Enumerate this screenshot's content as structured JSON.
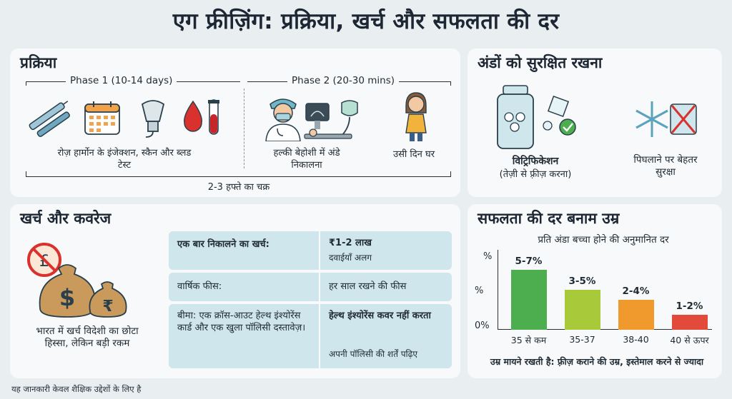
{
  "title": "एग फ्रीज़िंग: प्रक्रिया, खर्च और सफलता की दर",
  "process": {
    "heading": "प्रक्रिया",
    "phase1_label": "Phase 1 (10-14 days)",
    "phase2_label": "Phase 2 (20-30 mins)",
    "step1_caption": "रोज़ हार्मोन के इंजेक्शन, स्कैन और ब्लड टेस्ट",
    "step2_caption": "हल्की बेहोशी में अंडे निकालना",
    "step3_caption": "उसी दिन घर",
    "cycle_label": "2-3 हफ्ते का चक्र"
  },
  "storage": {
    "heading": "अंडों को सुरक्षित रखना",
    "vitri_title": "विट्रिफिकेशन",
    "vitri_sub": "(तेज़ी से फ़्रीज़ करना)",
    "thaw_caption": "पिघलाने पर बेहतर सुरक्षा"
  },
  "cost": {
    "heading": "खर्च और कवरेज",
    "caption": "भारत में खर्च विदेशी का छोटा हिस्सा, लेकिन बड़ी रकम",
    "rows": [
      {
        "label": "एक बार निकालने का खर्च:",
        "value": "₹1-2 लाख",
        "note": "दवाईयाँ अलग"
      },
      {
        "label": "वार्षिक फीस:",
        "value": "हर साल रखने की फीस",
        "note": ""
      },
      {
        "label": "बीमा: एक क्रॉस-आउट हेल्थ इंश्योरेंस कार्ड और एक खुला पॉलिसी दस्तावेज़।",
        "value": "हेल्थ इंश्योरेंस कवर नहीं करता",
        "note": "अपनी पॉलिसी की शर्तें पढ़िए"
      }
    ]
  },
  "success": {
    "heading": "सफलता की दर बनाम उम्र",
    "subtitle": "प्रति अंडा बच्चा होने की अनुमानित दर",
    "footer": "उम्र मायने रखती है: फ़्रीज़ कराने की उम्र, इस्तेमाल करने से ज्यादा",
    "y_ticks": [
      "%",
      "%",
      "0%"
    ]
  },
  "chart_data": {
    "type": "bar",
    "categories": [
      "35 से कम",
      "35-37",
      "38-40",
      "40 से ऊपर"
    ],
    "values": [
      6,
      4,
      3,
      1.5
    ],
    "value_labels": [
      "5-7%",
      "3-5%",
      "2-4%",
      "1-2%"
    ],
    "colors": [
      "#4cae4f",
      "#a8c93a",
      "#f09a2e",
      "#e24a3b"
    ],
    "title": "सफलता की दर बनाम उम्र",
    "subtitle": "प्रति अंडा बच्चा होने की अनुमानित दर",
    "ylim": [
      0,
      8
    ]
  },
  "disclaimer": "यह जानकारी केवल शैक्षिक उद्देशों के लिए है"
}
